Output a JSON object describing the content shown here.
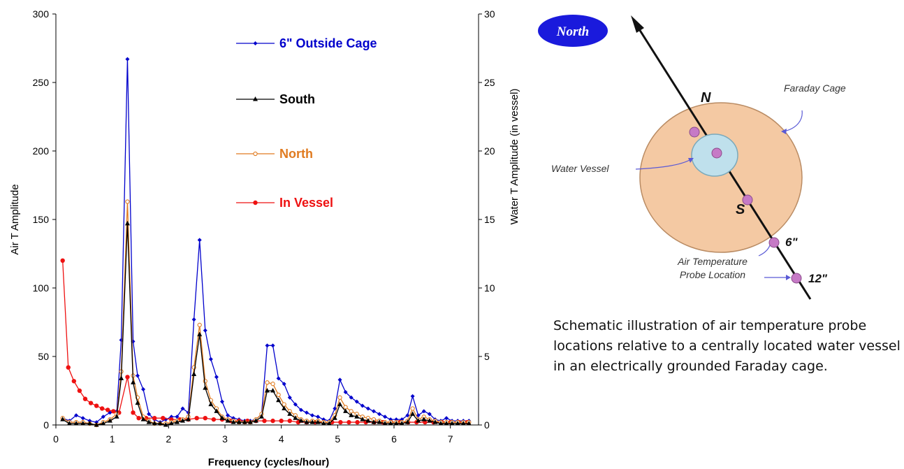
{
  "chart_data": {
    "type": "line",
    "xlabel": "Frequency (cycles/hour)",
    "ylabel": "Air T Amplitude",
    "y2label": "Water T Amplitude (in vessel)",
    "xlim": [
      0,
      7.5
    ],
    "ylim": [
      0,
      300
    ],
    "y2lim": [
      0,
      30
    ],
    "xticks": [
      "0",
      "1",
      "2",
      "3",
      "4",
      "5",
      "6",
      "7"
    ],
    "yticks": [
      "0",
      "50",
      "100",
      "150",
      "200",
      "250",
      "300"
    ],
    "y2ticks": [
      "0",
      "5",
      "10",
      "15",
      "20",
      "25",
      "30"
    ],
    "grid": false,
    "legend_position": "top-right (inside)",
    "series": [
      {
        "name": "6\" Outside Cage",
        "color": "#0000cc",
        "marker": "diamond",
        "axis": "left",
        "x": [
          0.12,
          0.24,
          0.36,
          0.48,
          0.6,
          0.72,
          0.84,
          0.96,
          1.08,
          1.16,
          1.27,
          1.37,
          1.45,
          1.55,
          1.65,
          1.75,
          1.85,
          1.95,
          2.05,
          2.15,
          2.25,
          2.35,
          2.45,
          2.55,
          2.65,
          2.75,
          2.85,
          2.95,
          3.05,
          3.15,
          3.25,
          3.35,
          3.45,
          3.55,
          3.65,
          3.75,
          3.85,
          3.95,
          4.05,
          4.15,
          4.25,
          4.35,
          4.45,
          4.55,
          4.65,
          4.75,
          4.85,
          4.95,
          5.04,
          5.14,
          5.24,
          5.34,
          5.44,
          5.54,
          5.64,
          5.74,
          5.84,
          5.94,
          6.04,
          6.14,
          6.24,
          6.33,
          6.43,
          6.53,
          6.63,
          6.73,
          6.83,
          6.93,
          7.03,
          7.13,
          7.23,
          7.33
        ],
        "y": [
          5,
          3,
          7,
          5,
          3,
          2,
          6,
          9,
          10,
          62,
          267,
          61,
          36,
          26,
          8,
          4,
          2,
          4,
          6,
          6,
          12,
          9,
          77,
          135,
          69,
          48,
          35,
          17,
          7,
          5,
          4,
          3,
          3,
          4,
          8,
          58,
          58,
          34,
          30,
          20,
          15,
          11,
          9,
          7,
          6,
          4,
          3,
          12,
          33,
          24,
          20,
          17,
          14,
          12,
          10,
          8,
          6,
          4,
          4,
          4,
          7,
          21,
          7,
          10,
          8,
          4,
          3,
          5,
          3,
          3,
          3,
          3
        ]
      },
      {
        "name": "South",
        "color": "#000000",
        "marker": "triangle",
        "axis": "left",
        "x": [
          0.12,
          0.24,
          0.36,
          0.48,
          0.6,
          0.72,
          0.84,
          0.96,
          1.08,
          1.16,
          1.27,
          1.37,
          1.45,
          1.55,
          1.65,
          1.75,
          1.85,
          1.95,
          2.05,
          2.15,
          2.25,
          2.35,
          2.45,
          2.55,
          2.65,
          2.75,
          2.85,
          2.95,
          3.05,
          3.15,
          3.25,
          3.35,
          3.45,
          3.55,
          3.65,
          3.75,
          3.85,
          3.95,
          4.05,
          4.15,
          4.25,
          4.35,
          4.45,
          4.55,
          4.65,
          4.75,
          4.85,
          4.95,
          5.04,
          5.14,
          5.24,
          5.34,
          5.44,
          5.54,
          5.64,
          5.74,
          5.84,
          5.94,
          6.04,
          6.14,
          6.24,
          6.33,
          6.43,
          6.53,
          6.63,
          6.73,
          6.83,
          6.93,
          7.03,
          7.13,
          7.23,
          7.33
        ],
        "y": [
          4,
          1,
          1,
          1,
          1,
          0,
          1,
          3,
          6,
          34,
          147,
          31,
          16,
          4,
          2,
          1,
          1,
          0,
          1,
          2,
          3,
          4,
          37,
          66,
          27,
          15,
          10,
          5,
          3,
          2,
          2,
          2,
          2,
          3,
          6,
          25,
          25,
          18,
          12,
          8,
          5,
          3,
          2,
          2,
          2,
          1,
          1,
          5,
          15,
          10,
          7,
          6,
          4,
          3,
          2,
          2,
          1,
          1,
          1,
          1,
          2,
          8,
          3,
          4,
          3,
          2,
          1,
          1,
          1,
          1,
          1,
          1
        ]
      },
      {
        "name": "North",
        "color": "#e07b20",
        "marker": "circle-open",
        "axis": "left",
        "x": [
          0.12,
          0.24,
          0.36,
          0.48,
          0.6,
          0.72,
          0.84,
          0.96,
          1.08,
          1.16,
          1.27,
          1.37,
          1.45,
          1.55,
          1.65,
          1.75,
          1.85,
          1.95,
          2.05,
          2.15,
          2.25,
          2.35,
          2.45,
          2.55,
          2.65,
          2.75,
          2.85,
          2.95,
          3.05,
          3.15,
          3.25,
          3.35,
          3.45,
          3.55,
          3.65,
          3.75,
          3.85,
          3.95,
          4.05,
          4.15,
          4.25,
          4.35,
          4.45,
          4.55,
          4.65,
          4.75,
          4.85,
          4.95,
          5.04,
          5.14,
          5.24,
          5.34,
          5.44,
          5.54,
          5.64,
          5.74,
          5.84,
          5.94,
          6.04,
          6.14,
          6.24,
          6.33,
          6.43,
          6.53,
          6.63,
          6.73,
          6.83,
          6.93,
          7.03,
          7.13,
          7.23,
          7.33
        ],
        "y": [
          5,
          2,
          2,
          2,
          1,
          0,
          2,
          4,
          8,
          39,
          163,
          36,
          20,
          6,
          3,
          1,
          1,
          1,
          2,
          3,
          4,
          6,
          42,
          73,
          32,
          18,
          12,
          6,
          4,
          3,
          2,
          2,
          2,
          4,
          8,
          31,
          30,
          22,
          15,
          10,
          7,
          4,
          3,
          3,
          3,
          2,
          2,
          7,
          20,
          13,
          10,
          8,
          6,
          5,
          4,
          3,
          2,
          2,
          2,
          2,
          3,
          12,
          4,
          6,
          4,
          3,
          2,
          2,
          2,
          2,
          2,
          2
        ]
      },
      {
        "name": "In Vessel",
        "color": "#ee1111",
        "marker": "circle",
        "axis": "right",
        "x": [
          0.12,
          0.22,
          0.32,
          0.42,
          0.52,
          0.62,
          0.72,
          0.82,
          0.92,
          1.02,
          1.12,
          1.27,
          1.37,
          1.47,
          1.6,
          1.75,
          1.9,
          2.05,
          2.2,
          2.35,
          2.5,
          2.65,
          2.8,
          2.95,
          3.1,
          3.25,
          3.4,
          3.55,
          3.7,
          3.85,
          4.0,
          4.15,
          4.3,
          4.45,
          4.6,
          4.75,
          4.9,
          5.05,
          5.2,
          5.35,
          5.5,
          5.65,
          5.8,
          5.95,
          6.1,
          6.25,
          6.4,
          6.55,
          6.7,
          6.85,
          7.0,
          7.15,
          7.3
        ],
        "y": [
          12.0,
          4.2,
          3.2,
          2.5,
          1.9,
          1.6,
          1.4,
          1.2,
          1.1,
          1.0,
          0.9,
          3.5,
          0.9,
          0.5,
          0.5,
          0.5,
          0.5,
          0.4,
          0.4,
          0.4,
          0.5,
          0.5,
          0.4,
          0.4,
          0.3,
          0.3,
          0.3,
          0.3,
          0.3,
          0.3,
          0.3,
          0.3,
          0.2,
          0.2,
          0.2,
          0.2,
          0.2,
          0.2,
          0.2,
          0.2,
          0.2,
          0.2,
          0.2,
          0.2,
          0.2,
          0.2,
          0.2,
          0.2,
          0.2,
          0.2,
          0.2,
          0.2,
          0.2
        ]
      }
    ]
  },
  "schematic": {
    "north_badge": "North",
    "faraday_label": "Faraday Cage",
    "vessel_label": "Water Vessel",
    "n_label": "N",
    "s_label": "S",
    "six_label": "6\"",
    "twelve_label": "12\"",
    "probe_label_line1": "Air Temperature",
    "probe_label_line2": "Probe Location",
    "caption": "Schematic illustration of air temperature probe locations relative to a centrally located water vessel in an electrically grounded Faraday cage.",
    "colors": {
      "cage_fill": "#f4c9a3",
      "vessel_fill": "#bfe0ec",
      "badge_fill": "#1a1adc",
      "probe": "#c67ac6",
      "arrow": "#111111"
    }
  }
}
